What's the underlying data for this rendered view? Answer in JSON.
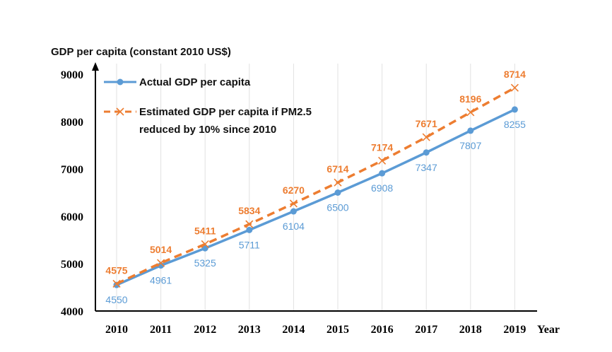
{
  "chart_data": {
    "type": "line",
    "ylabel": "GDP per capita  (constant  2010 US$)",
    "xlabel": "Year",
    "ylim": [
      4000,
      9000
    ],
    "y_ticks": [
      4000,
      5000,
      6000,
      7000,
      8000,
      9000
    ],
    "y_tick_labels": [
      "4000",
      "5000",
      "6000",
      "7000",
      "8000",
      "9000"
    ],
    "categories": [
      "2010",
      "2011",
      "2012",
      "2013",
      "2014",
      "2015",
      "2016",
      "2017",
      "2018",
      "2019"
    ],
    "grid": "vertical",
    "legend_position": "top-left",
    "series": [
      {
        "name": "Actual GDP per capita",
        "style": "solid",
        "marker": "circle",
        "color": "#5b9bd5",
        "label_color": "#5b9bd5",
        "values": [
          4550,
          4961,
          5325,
          5711,
          6104,
          6500,
          6908,
          7347,
          7807,
          8255
        ],
        "labels": [
          "4550",
          "4961",
          "5325",
          "5711",
          "6104",
          "6500",
          "6908",
          "7347",
          "7807",
          "8255"
        ]
      },
      {
        "name_line1": "Estimated GDP per capita if PM2.5",
        "name_line2": "reduced by 10% since 2010",
        "style": "dashed",
        "marker": "x",
        "color": "#ed7d31",
        "label_color": "#ed7d31",
        "values": [
          4575,
          5014,
          5411,
          5834,
          6270,
          6714,
          7174,
          7671,
          8196,
          8714
        ],
        "labels": [
          "4575",
          "5014",
          "5411",
          "5834",
          "6270",
          "6714",
          "7174",
          "7671",
          "8196",
          "8714"
        ]
      }
    ]
  }
}
